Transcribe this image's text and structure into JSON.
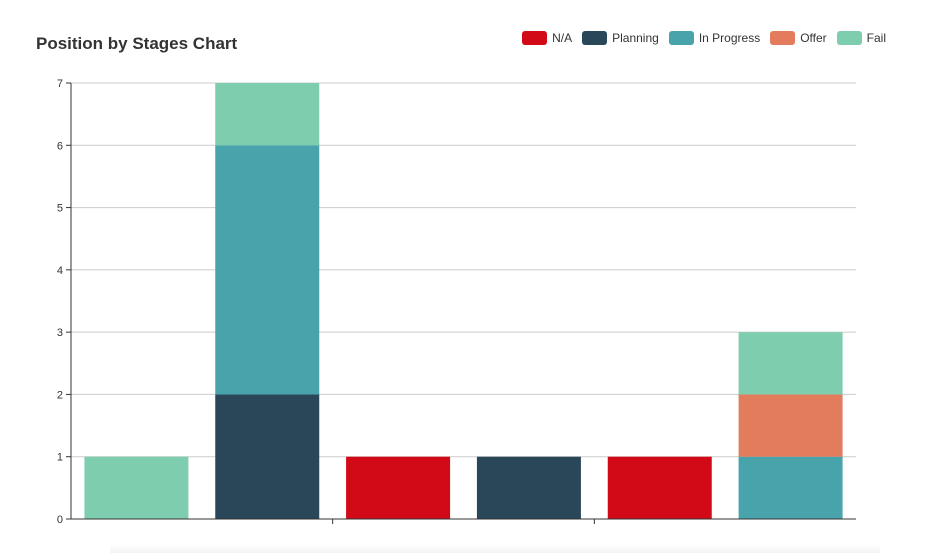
{
  "chart_data": {
    "type": "bar",
    "stacked": true,
    "title": "Position by Stages Chart",
    "xlabel": "",
    "ylabel": "",
    "ylim": [
      0,
      7
    ],
    "yticks": [
      0,
      1,
      2,
      3,
      4,
      5,
      6,
      7
    ],
    "grid": true,
    "legend_position": "top-right",
    "categories": [
      "",
      "",
      "",
      "",
      "",
      ""
    ],
    "series": [
      {
        "name": "N/A",
        "color": "#d20a17",
        "values": [
          0,
          0,
          1,
          0,
          1,
          0
        ]
      },
      {
        "name": "Planning",
        "color": "#2a4659",
        "values": [
          0,
          2,
          0,
          1,
          0,
          0
        ]
      },
      {
        "name": "In Progress",
        "color": "#49a3ab",
        "values": [
          0,
          4,
          0,
          0,
          0,
          1
        ]
      },
      {
        "name": "Offer",
        "color": "#e27c5c",
        "values": [
          0,
          0,
          0,
          0,
          0,
          1
        ]
      },
      {
        "name": "Fail",
        "color": "#7fcdaf",
        "values": [
          1,
          1,
          0,
          0,
          0,
          1
        ]
      }
    ]
  }
}
